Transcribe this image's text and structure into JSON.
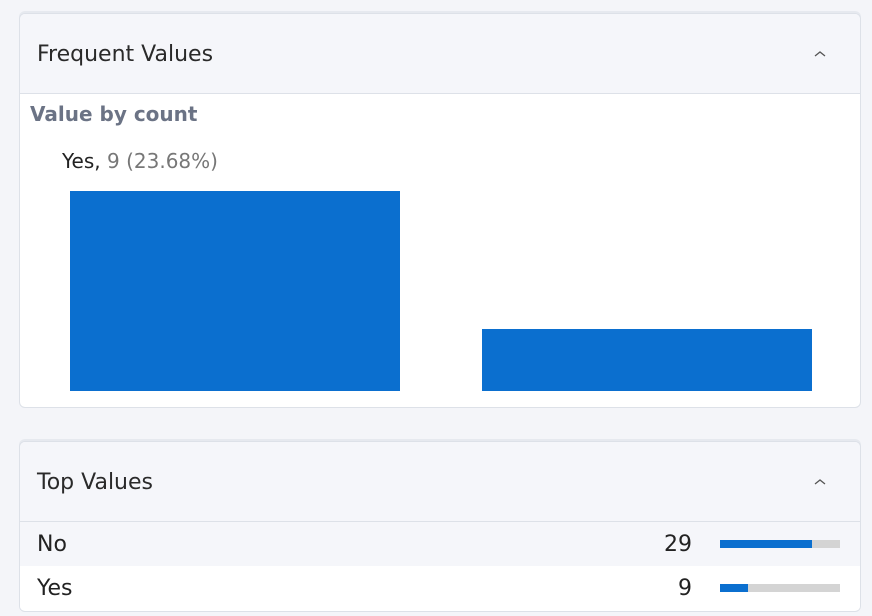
{
  "frequent_values": {
    "title": "Frequent Values",
    "chart": {
      "type": "bar",
      "title": "Value by count",
      "values": [
        29,
        9
      ],
      "color": "#0b6fcf",
      "tooltip": {
        "label": "Yes,",
        "detail": "9 (23.68%)"
      }
    }
  },
  "top_values": {
    "title": "Top Values",
    "bar_color": "#0b6fcf",
    "track_color": "#d4d4d4",
    "rows": [
      {
        "label": "No",
        "count": 29
      },
      {
        "label": "Yes",
        "count": 9
      }
    ]
  }
}
